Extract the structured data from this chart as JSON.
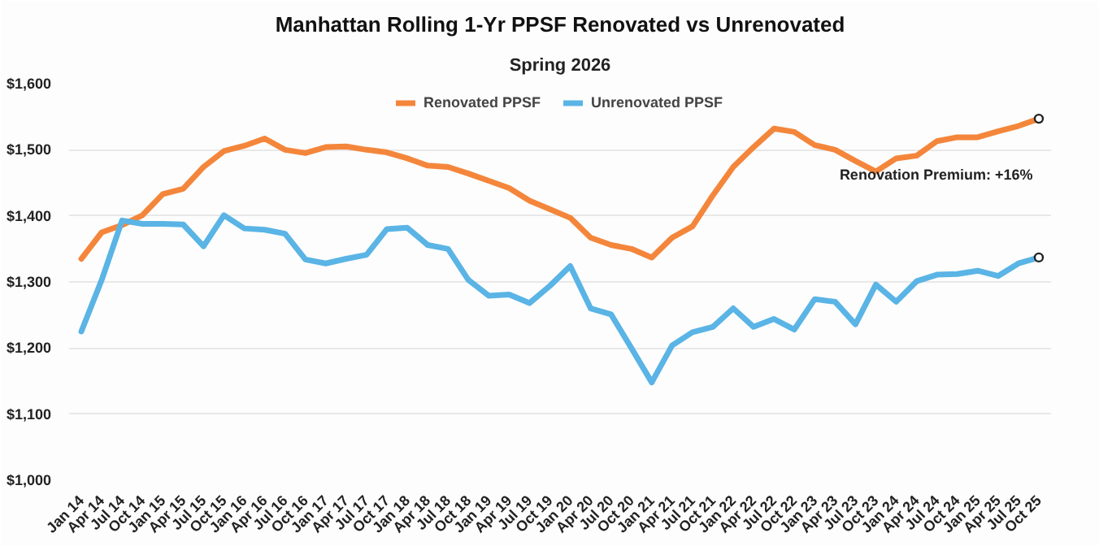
{
  "chart_data": {
    "type": "line",
    "title": "Manhattan Rolling 1-Yr PPSF Renovated vs Unrenovated",
    "subtitle": "Spring 2026",
    "categories": [
      "Jan 14",
      "Apr 14",
      "Jul 14",
      "Oct 14",
      "Jan 15",
      "Apr 15",
      "Jul 15",
      "Oct 15",
      "Jan 16",
      "Apr 16",
      "Jul 16",
      "Oct 16",
      "Jan 17",
      "Apr 17",
      "Jul 17",
      "Oct 17",
      "Jan 18",
      "Apr 18",
      "Jul 18",
      "Oct 18",
      "Jan 19",
      "Apr 19",
      "Jul 19",
      "Oct 19",
      "Jan 20",
      "Apr 20",
      "Jul 20",
      "Oct 20",
      "Jan 21",
      "Apr 21",
      "Jul 21",
      "Oct 21",
      "Jan 22",
      "Apr 22",
      "Jul 22",
      "Oct 22",
      "Jan 23",
      "Apr 23",
      "Jul 23",
      "Oct 23",
      "Jan 24",
      "Apr 24",
      "Jul 24",
      "Oct 24",
      "Jan 25",
      "Apr 25",
      "Jul 25",
      "Oct 25"
    ],
    "series": [
      {
        "name": "Renovated PPSF",
        "color": "#f4863b",
        "values": [
          1335,
          1375,
          1386,
          1401,
          1433,
          1441,
          1474,
          1498,
          1506,
          1517,
          1500,
          1495,
          1504,
          1505,
          1500,
          1496,
          1487,
          1476,
          1474,
          1464,
          1453,
          1442,
          1423,
          1410,
          1397,
          1367,
          1356,
          1350,
          1337,
          1367,
          1384,
          1431,
          1474,
          1504,
          1532,
          1527,
          1507,
          1500,
          1483,
          1467,
          1487,
          1491,
          1513,
          1519,
          1519,
          1528,
          1536,
          1547
        ]
      },
      {
        "name": "Unrenovated PPSF",
        "color": "#5ab4e5",
        "values": [
          1225,
          1303,
          1393,
          1388,
          1388,
          1387,
          1354,
          1401,
          1381,
          1379,
          1373,
          1334,
          1328,
          1335,
          1341,
          1380,
          1382,
          1356,
          1350,
          1303,
          1279,
          1281,
          1268,
          1294,
          1324,
          1260,
          1251,
          1200,
          1148,
          1204,
          1224,
          1232,
          1260,
          1232,
          1244,
          1228,
          1274,
          1270,
          1236,
          1296,
          1270,
          1301,
          1311,
          1312,
          1317,
          1309,
          1328,
          1337
        ]
      }
    ],
    "ylim": [
      1000,
      1600
    ],
    "yticks": [
      {
        "value": 1000,
        "label": "$1,000"
      },
      {
        "value": 1100,
        "label": "$1,100"
      },
      {
        "value": 1200,
        "label": "$1,200"
      },
      {
        "value": 1300,
        "label": "$1,300"
      },
      {
        "value": 1400,
        "label": "$1,400"
      },
      {
        "value": 1500,
        "label": "$1,500"
      },
      {
        "value": 1600,
        "label": "$1,600"
      }
    ],
    "annotations": [
      "Renovation Premium: +16%"
    ],
    "grid": "y",
    "legend": "top",
    "line_style": "solid",
    "marker": "none"
  }
}
